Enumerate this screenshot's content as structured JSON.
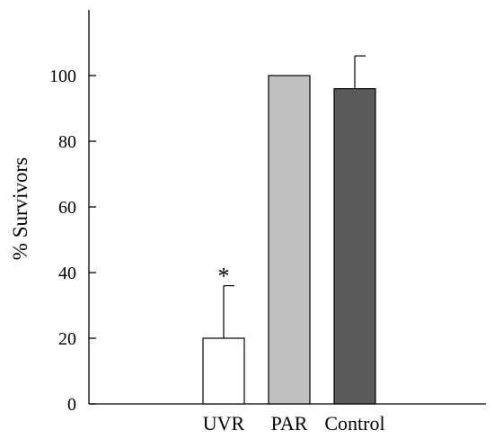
{
  "chart_data": {
    "type": "bar",
    "categories": [
      "UVR",
      "PAR",
      "Control"
    ],
    "values": [
      20,
      100,
      96
    ],
    "error_bars": [
      16,
      0,
      10
    ],
    "colors": [
      "#ffffff",
      "#c0c0c0",
      "#5a5a5a"
    ],
    "annotations": [
      {
        "category": "UVR",
        "text": "*"
      }
    ],
    "xlabel": "",
    "ylabel": "% Survivors",
    "ylim": [
      0,
      120
    ],
    "yticks": [
      0,
      20,
      40,
      60,
      80,
      100
    ],
    "grid": false,
    "legend": "none"
  }
}
